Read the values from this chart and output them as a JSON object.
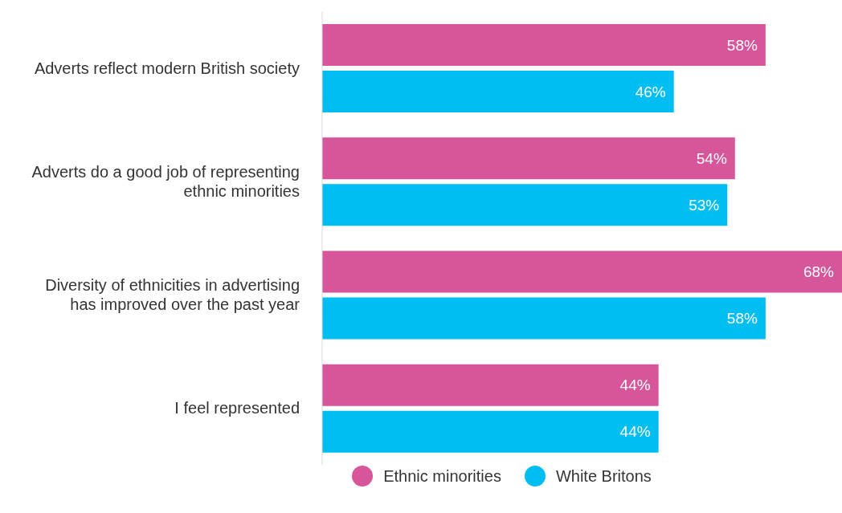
{
  "chart_data": {
    "type": "bar",
    "orientation": "horizontal",
    "categories": [
      "Adverts reflect modern British society",
      "Adverts do a good job of representing ethnic minorities",
      "Diversity of ethnicities in advertising has improved over the past year",
      "I feel represented"
    ],
    "series": [
      {
        "name": "Ethnic minorities",
        "color": "#d6559b",
        "values": [
          58,
          54,
          68,
          44
        ],
        "value_labels": [
          "58%",
          "54%",
          "68%",
          "44%"
        ]
      },
      {
        "name": "White Britons",
        "color": "#00bdf2",
        "values": [
          46,
          53,
          58,
          44
        ],
        "value_labels": [
          "46%",
          "53%",
          "58%",
          "44%"
        ]
      }
    ],
    "xlim": [
      0,
      68
    ],
    "tick_labels": "y",
    "legend": "bottom"
  }
}
